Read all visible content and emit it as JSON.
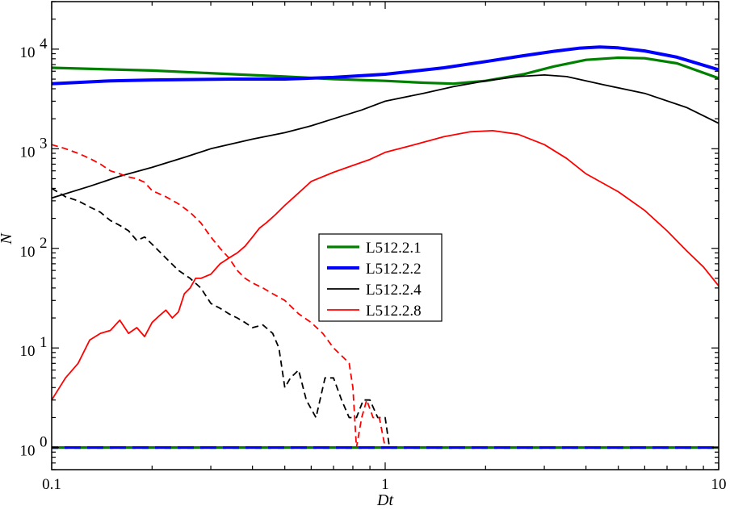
{
  "chart_data": {
    "type": "line",
    "xlabel": "Dt",
    "ylabel": "N",
    "xscale": "log",
    "yscale": "log",
    "xlim": [
      0.1,
      10
    ],
    "ylim": [
      0.6,
      30000
    ],
    "grid": false,
    "legend_position": "center",
    "x_ticks": [
      {
        "value": 0.1,
        "label": "0.1"
      },
      {
        "value": 1,
        "label": "1"
      },
      {
        "value": 10,
        "label": "10"
      }
    ],
    "y_ticks": [
      {
        "value": 1,
        "base": "10",
        "exp": "0"
      },
      {
        "value": 10,
        "base": "10",
        "exp": "1"
      },
      {
        "value": 100,
        "base": "10",
        "exp": "2"
      },
      {
        "value": 1000,
        "base": "10",
        "exp": "3"
      },
      {
        "value": 10000,
        "base": "10",
        "exp": "4"
      }
    ],
    "series": [
      {
        "name": "L512.2.1",
        "color": "#008000",
        "width": 3.2,
        "in_legend": true,
        "x": [
          0.1,
          0.2,
          0.35,
          0.5,
          0.7,
          1.0,
          1.3,
          1.6,
          2.0,
          2.6,
          3.2,
          4.0,
          5.0,
          6.0,
          7.5,
          10.0
        ],
        "y": [
          6500,
          6100,
          5600,
          5300,
          5000,
          4800,
          4600,
          4500,
          4800,
          5600,
          6700,
          7800,
          8200,
          8100,
          7200,
          5100
        ]
      },
      {
        "name": "L512.2.2",
        "color": "#0000ff",
        "width": 4.0,
        "in_legend": true,
        "x": [
          0.1,
          0.15,
          0.2,
          0.35,
          0.5,
          0.7,
          1.0,
          1.5,
          2.0,
          2.6,
          3.2,
          3.8,
          4.4,
          5.0,
          6.0,
          7.5,
          10.0
        ],
        "y": [
          4500,
          4800,
          4900,
          5000,
          5000,
          5200,
          5600,
          6500,
          7500,
          8600,
          9500,
          10200,
          10500,
          10300,
          9600,
          8300,
          6200
        ]
      },
      {
        "name": "L512.2.4",
        "color": "#000000",
        "width": 1.8,
        "in_legend": true,
        "x": [
          0.1,
          0.13,
          0.16,
          0.2,
          0.25,
          0.3,
          0.4,
          0.5,
          0.6,
          0.7,
          0.85,
          1.0,
          1.3,
          1.6,
          2.0,
          2.5,
          3.0,
          3.5,
          4.5,
          6.0,
          8.0,
          10.0
        ],
        "y": [
          320,
          420,
          530,
          650,
          820,
          1000,
          1250,
          1450,
          1700,
          2000,
          2450,
          3000,
          3600,
          4200,
          4800,
          5300,
          5500,
          5300,
          4400,
          3600,
          2600,
          1800
        ]
      },
      {
        "name": "L512.2.8",
        "color": "#ff0000",
        "width": 1.8,
        "in_legend": true,
        "x": [
          0.1,
          0.11,
          0.12,
          0.13,
          0.14,
          0.15,
          0.16,
          0.17,
          0.18,
          0.19,
          0.2,
          0.21,
          0.22,
          0.23,
          0.24,
          0.25,
          0.26,
          0.27,
          0.28,
          0.3,
          0.32,
          0.34,
          0.36,
          0.38,
          0.4,
          0.42,
          0.44,
          0.47,
          0.5,
          0.55,
          0.6,
          0.7,
          0.8,
          0.9,
          1.0,
          1.2,
          1.5,
          1.8,
          2.1,
          2.5,
          3.0,
          3.5,
          4.0,
          5.0,
          6.0,
          7.0,
          8.0,
          9.0,
          10.0
        ],
        "y": [
          3,
          5,
          7,
          12,
          14,
          15,
          19,
          14,
          16,
          13,
          18,
          21,
          24,
          20,
          23,
          35,
          40,
          50,
          50,
          55,
          70,
          80,
          90,
          105,
          130,
          160,
          180,
          220,
          270,
          360,
          470,
          580,
          680,
          780,
          920,
          1080,
          1320,
          1480,
          1520,
          1400,
          1100,
          800,
          560,
          370,
          240,
          150,
          95,
          65,
          42
        ]
      },
      {
        "name": "L512.2.4 (dashed)",
        "color": "#000000",
        "width": 1.8,
        "dash": "8,5",
        "in_legend": false,
        "x": [
          0.1,
          0.11,
          0.12,
          0.13,
          0.14,
          0.15,
          0.16,
          0.17,
          0.18,
          0.19,
          0.2,
          0.22,
          0.24,
          0.26,
          0.28,
          0.3,
          0.32,
          0.34,
          0.36,
          0.38,
          0.4,
          0.43,
          0.46,
          0.48,
          0.5,
          0.52,
          0.55,
          0.58,
          0.62,
          0.66,
          0.7,
          0.74,
          0.78,
          0.82,
          0.86,
          0.9,
          0.95,
          1.0,
          1.03,
          1.1,
          1.5,
          2.0,
          3.0,
          5.0,
          7.0,
          10.0
        ],
        "y": [
          400,
          330,
          300,
          260,
          230,
          190,
          170,
          150,
          120,
          130,
          110,
          80,
          60,
          50,
          40,
          28,
          25,
          22,
          20,
          18,
          16,
          17,
          14,
          10,
          4,
          5,
          6,
          3,
          2,
          5,
          5,
          3,
          2,
          2,
          3,
          3,
          2,
          2,
          1,
          1,
          1,
          1,
          1,
          1,
          1,
          1
        ]
      },
      {
        "name": "L512.2.8 (dashed)",
        "color": "#ff0000",
        "width": 1.8,
        "dash": "8,5",
        "in_legend": false,
        "x": [
          0.1,
          0.11,
          0.12,
          0.13,
          0.14,
          0.15,
          0.16,
          0.17,
          0.18,
          0.19,
          0.2,
          0.22,
          0.24,
          0.26,
          0.28,
          0.3,
          0.32,
          0.34,
          0.36,
          0.38,
          0.4,
          0.43,
          0.46,
          0.5,
          0.55,
          0.6,
          0.65,
          0.7,
          0.75,
          0.78,
          0.8,
          0.82,
          0.85,
          0.88,
          0.92,
          0.96,
          1.0,
          1.2,
          2.0,
          5.0,
          10.0
        ],
        "y": [
          1100,
          1000,
          900,
          800,
          700,
          600,
          560,
          520,
          500,
          460,
          380,
          330,
          280,
          230,
          180,
          130,
          100,
          80,
          60,
          50,
          45,
          40,
          35,
          30,
          22,
          18,
          14,
          10,
          8,
          7,
          4,
          1,
          2,
          3,
          2,
          2,
          1,
          1,
          1,
          1,
          1
        ]
      },
      {
        "name": "L512.2.1 (dashed)",
        "color": "#008000",
        "width": 3.2,
        "dash": "20,8",
        "in_legend": false,
        "x": [
          0.1,
          10.0
        ],
        "y": [
          1,
          1
        ]
      },
      {
        "name": "L512.2.2 (dashed)",
        "color": "#0000ff",
        "width": 3.2,
        "dash": "20,8",
        "dashoffset": 12,
        "in_legend": false,
        "x": [
          0.1,
          10.0
        ],
        "y": [
          1,
          1
        ]
      }
    ],
    "legend": [
      {
        "label": "L512.2.1",
        "color": "#008000",
        "width": 3.2
      },
      {
        "label": "L512.2.2",
        "color": "#0000ff",
        "width": 4.0
      },
      {
        "label": "L512.2.4",
        "color": "#000000",
        "width": 1.8
      },
      {
        "label": "L512.2.8",
        "color": "#ff0000",
        "width": 1.8
      }
    ]
  }
}
